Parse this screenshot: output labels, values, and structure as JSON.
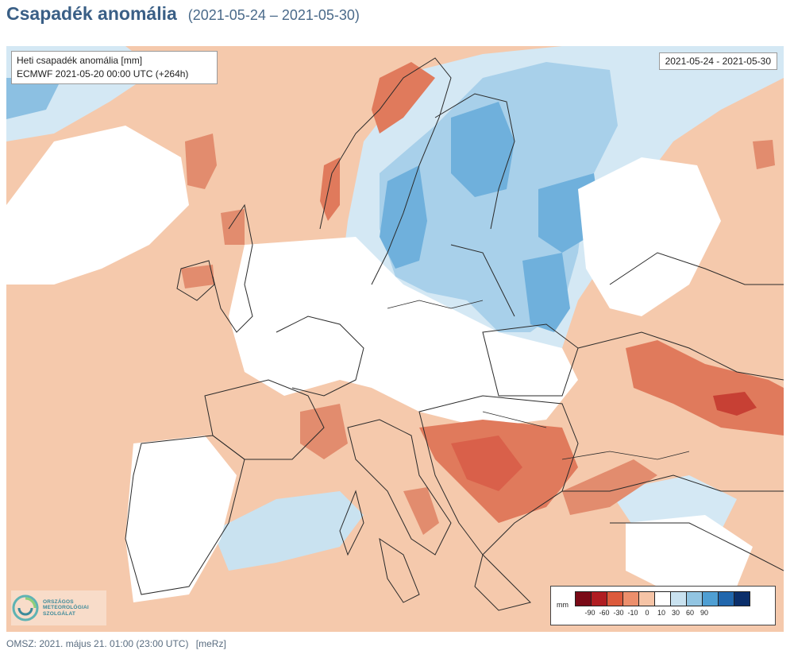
{
  "header": {
    "title": "Csapadék anomália",
    "period": "(2021-05-24 – 2021-05-30)"
  },
  "map": {
    "label_title": "Heti csapadék anomália [mm]",
    "label_model": "ECMWF 2021-05-20 00:00 UTC (+264h)",
    "label_period": "2021-05-24 - 2021-05-30",
    "legend": {
      "unit": "mm",
      "ticks": [
        "-90",
        "-60",
        "-30",
        "-10",
        "0",
        "10",
        "30",
        "60",
        "90"
      ],
      "colors": [
        "#7a0a17",
        "#b01d22",
        "#dc5a3c",
        "#ec8f6c",
        "#f6c4a6",
        "#ffffff",
        "#c9e2f0",
        "#92c5e2",
        "#4f9fd3",
        "#2167ad",
        "#0b2f6b"
      ]
    },
    "logo": {
      "line1": "ORSZÁGOS",
      "line2": "METEOROLÓGIAI",
      "line3": "SZOLGÁLAT"
    },
    "colors": {
      "dry_light": "#f5c9ac",
      "dry_mid": "#ec9f7f",
      "dry_strong": "#e06f54",
      "dry_extreme": "#c74034",
      "neutral": "#ffffff",
      "wet_light": "#d4e8f4",
      "wet_mid": "#a8d0ea",
      "wet_strong": "#6fb0dc",
      "border": "#2a2a2a"
    }
  },
  "footer": {
    "source": "OMSZ: 2021. május 21. 01:00 (23:00  UTC)",
    "tag": "[meRz]"
  }
}
